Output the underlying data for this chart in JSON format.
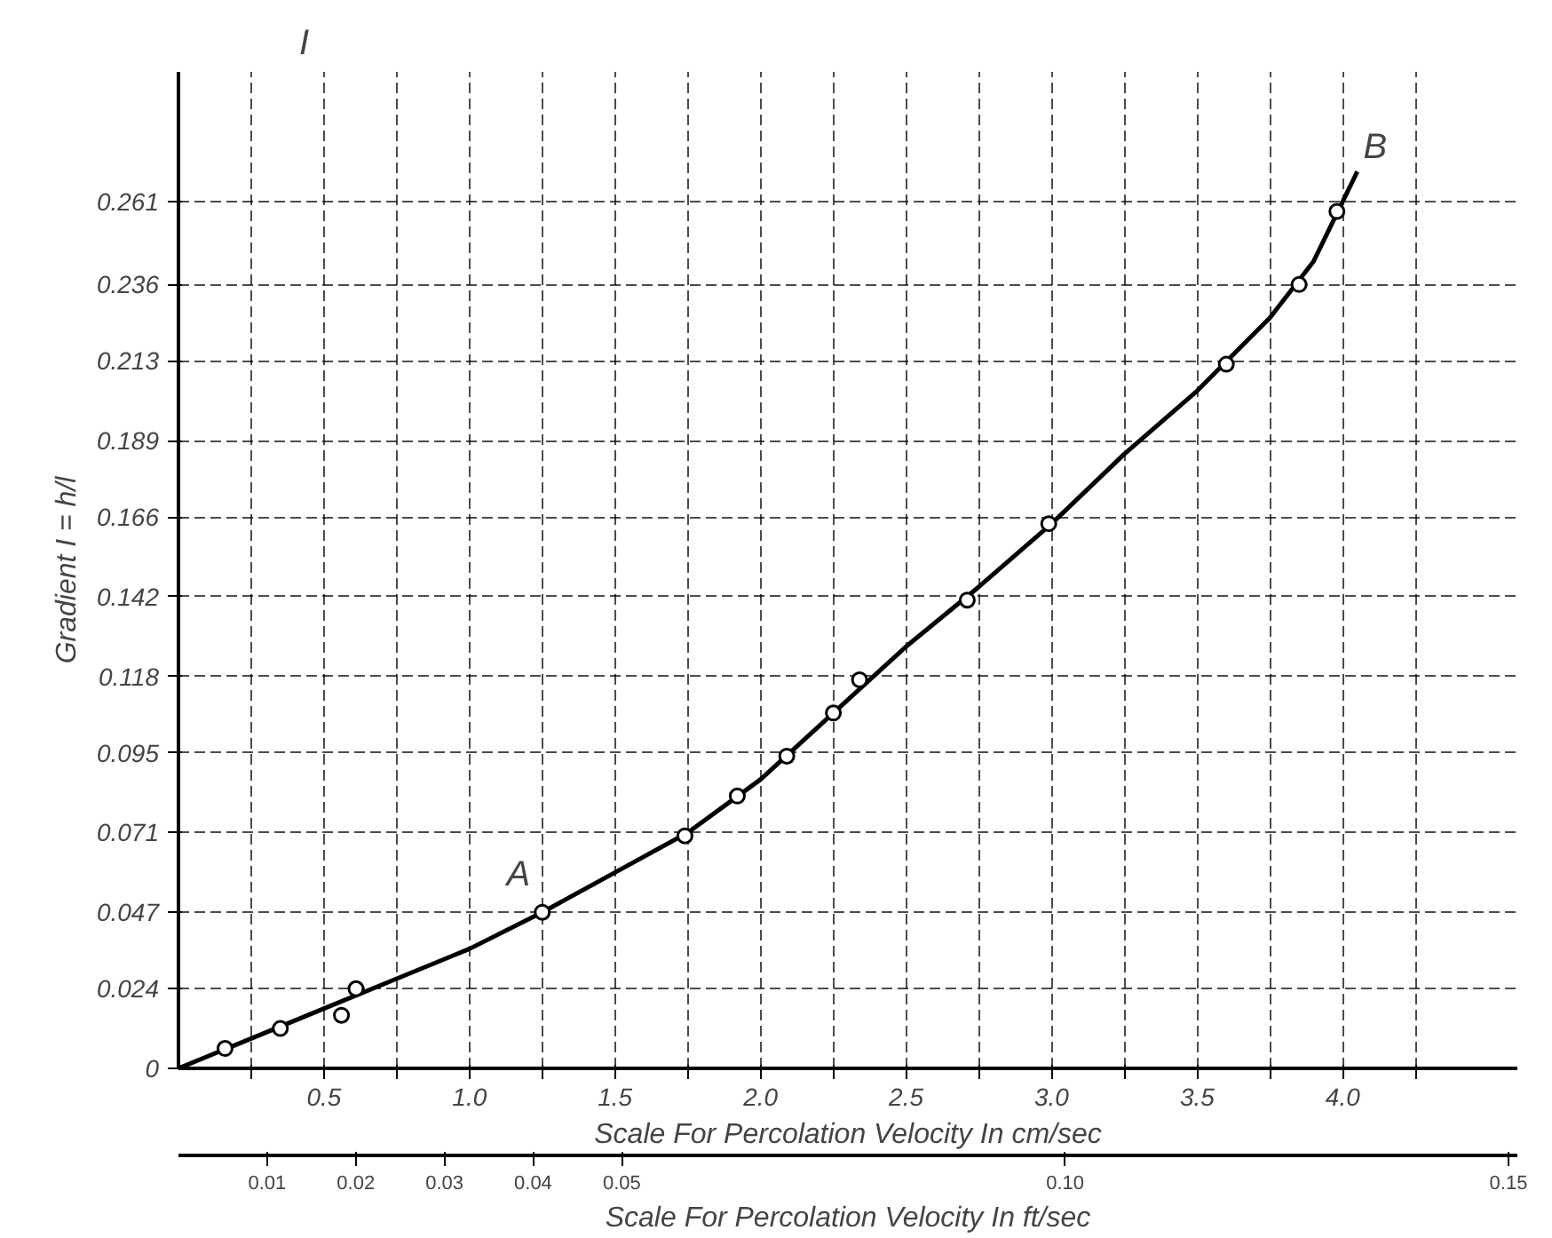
{
  "chart_data": {
    "type": "scatter",
    "xlabel": "Scale For Percolation Velocity In cm/sec",
    "ylabel": "Gradient I = h/l",
    "x2label": "Scale For Percolation Velocity In ft/sec",
    "annotations": [
      "I",
      "A",
      "B"
    ],
    "series": [
      {
        "type": "line",
        "color": "#000000",
        "marker": "none",
        "x": [
          0,
          0.25,
          0.5,
          0.75,
          1.0,
          1.25,
          1.5,
          1.75,
          2.0,
          2.25,
          2.5,
          2.75,
          3.0,
          3.25,
          3.5,
          3.75,
          3.9,
          4.05
        ],
        "values": [
          0,
          0.009,
          0.018,
          0.027,
          0.036,
          0.047,
          0.059,
          0.071,
          0.087,
          0.107,
          0.127,
          0.145,
          0.164,
          0.185,
          0.204,
          0.226,
          0.243,
          0.27
        ]
      },
      {
        "color": "#000000",
        "marker": "circle",
        "x": [
          0.16,
          0.35,
          0.56,
          0.61,
          1.25,
          1.74,
          1.92,
          2.09,
          2.25,
          2.34,
          2.71,
          2.99,
          3.6,
          3.85,
          3.98
        ],
        "values": [
          0.006,
          0.012,
          0.016,
          0.024,
          0.047,
          0.07,
          0.082,
          0.094,
          0.107,
          0.117,
          0.141,
          0.164,
          0.212,
          0.236,
          0.258
        ]
      }
    ],
    "xlim": [
      0,
      4.6
    ],
    "ylim": [
      0,
      0.3
    ],
    "xticks": [
      {
        "value": 0.25,
        "label": null
      },
      0.5,
      {
        "value": 0.75,
        "label": null
      },
      {
        "value": 1.0,
        "label": "1.0"
      },
      {
        "value": 1.25,
        "label": null
      },
      1.5,
      {
        "value": 1.75,
        "label": null
      },
      {
        "value": 2.0,
        "label": "2.0"
      },
      {
        "value": 2.25,
        "label": null
      },
      2.5,
      {
        "value": 2.75,
        "label": null
      },
      {
        "value": 3.0,
        "label": "3.0"
      },
      {
        "value": 3.25,
        "label": null
      },
      3.5,
      {
        "value": 3.75,
        "label": null
      },
      {
        "value": 4.0,
        "label": "4.0"
      },
      {
        "value": 4.25,
        "label": null
      }
    ],
    "yticks": [
      0,
      0.024,
      0.047,
      0.071,
      0.095,
      0.118,
      0.142,
      0.166,
      0.189,
      0.213,
      0.236,
      0.261
    ],
    "x2lim": [
      0,
      0.151
    ],
    "x2ticks": [
      0.01,
      0.02,
      0.03,
      0.04,
      0.05,
      {
        "value": 0.1,
        "label": "0.10"
      },
      0.15
    ],
    "grid": true,
    "line_style": "solid"
  }
}
